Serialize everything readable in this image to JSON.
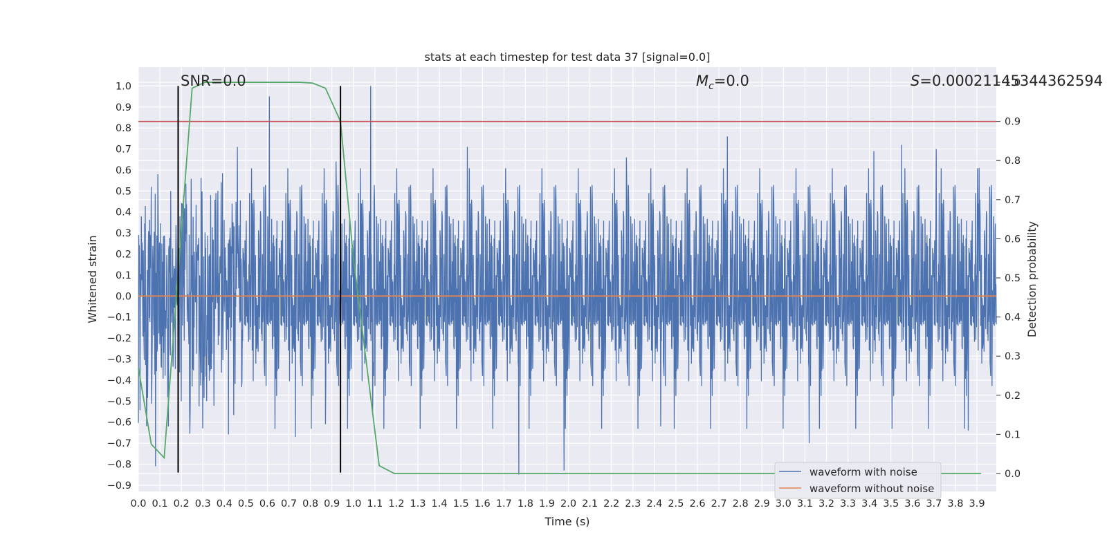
{
  "chart_data": {
    "type": "line",
    "title": "stats at each timestep for test data 37 [signal=0.0]",
    "xlabel": "Time (s)",
    "ylabel": "Whitened strain",
    "y2label": "Detection probability",
    "xlim": [
      0.0,
      3.99
    ],
    "ylim": [
      -0.93,
      1.09
    ],
    "y2lim": [
      -0.046,
      1.039
    ],
    "x_ticks": [
      "0.0",
      "0.1",
      "0.2",
      "0.3",
      "0.4",
      "0.5",
      "0.6",
      "0.7",
      "0.8",
      "0.9",
      "1.0",
      "1.1",
      "1.2",
      "1.3",
      "1.4",
      "1.5",
      "1.6",
      "1.7",
      "1.8",
      "1.9",
      "2.0",
      "2.1",
      "2.2",
      "2.3",
      "2.4",
      "2.5",
      "2.6",
      "2.7",
      "2.8",
      "2.9",
      "3.0",
      "3.1",
      "3.2",
      "3.3",
      "3.4",
      "3.5",
      "3.6",
      "3.7",
      "3.8",
      "3.9"
    ],
    "y_ticks": [
      "1.0",
      "0.9",
      "0.8",
      "0.7",
      "0.6",
      "0.5",
      "0.4",
      "0.3",
      "0.2",
      "0.1",
      "0.0",
      "−0.1",
      "−0.2",
      "−0.3",
      "−0.4",
      "−0.5",
      "−0.6",
      "−0.7",
      "−0.8",
      "−0.9"
    ],
    "y2_ticks": [
      "1.0",
      "0.9",
      "0.8",
      "0.7",
      "0.6",
      "0.5",
      "0.4",
      "0.3",
      "0.2",
      "0.1",
      "0.0"
    ],
    "grid": true,
    "legend_position": "lower-right",
    "annotations": {
      "snr": "SNR=0.0",
      "mc_symbol": "M",
      "mc_sub": "c",
      "mc_value": "=0.0",
      "s_symbol": "S",
      "s_value": "=0.00021145344362594"
    },
    "series": [
      {
        "name": "waveform with noise",
        "color": "#4c72b0",
        "description_kind": "noise",
        "envelope_hi": 0.35,
        "envelope_lo": -0.35,
        "spikes": [
          {
            "x": 0.06,
            "y": 0.52
          },
          {
            "x": 0.08,
            "y": -0.81
          },
          {
            "x": 0.09,
            "y": 0.58
          },
          {
            "x": 0.14,
            "y": -0.62
          },
          {
            "x": 0.15,
            "y": 0.5
          },
          {
            "x": 0.21,
            "y": 0.48
          },
          {
            "x": 0.3,
            "y": -0.63
          },
          {
            "x": 0.36,
            "y": 0.49
          },
          {
            "x": 0.46,
            "y": 0.71
          },
          {
            "x": 0.61,
            "y": 0.95
          },
          {
            "x": 0.73,
            "y": -0.67
          },
          {
            "x": 0.87,
            "y": -0.61
          },
          {
            "x": 0.92,
            "y": 0.64
          },
          {
            "x": 1.08,
            "y": 1.0
          },
          {
            "x": 1.09,
            "y": -0.55
          },
          {
            "x": 1.53,
            "y": 0.71
          },
          {
            "x": 1.77,
            "y": -0.85
          },
          {
            "x": 1.98,
            "y": -0.83
          },
          {
            "x": 2.27,
            "y": 0.66
          },
          {
            "x": 2.43,
            "y": -0.62
          },
          {
            "x": 2.74,
            "y": 0.76
          },
          {
            "x": 3.12,
            "y": -0.7
          },
          {
            "x": 3.42,
            "y": 0.69
          },
          {
            "x": 3.55,
            "y": 0.72
          },
          {
            "x": 3.71,
            "y": 0.7
          },
          {
            "x": 3.91,
            "y": 0.61
          },
          {
            "x": 3.86,
            "y": -0.64
          }
        ]
      },
      {
        "name": "waveform without noise",
        "color": "#dd8452",
        "x": [
          0.0,
          3.99
        ],
        "y": [
          0.0,
          0.0
        ]
      },
      {
        "name": "",
        "axis": "right",
        "color": "#55a868",
        "x": [
          0.0,
          0.06,
          0.12,
          0.25,
          0.31,
          0.37,
          0.5,
          0.62,
          0.75,
          0.81,
          0.87,
          0.94,
          1.0,
          1.12,
          1.19,
          1.31,
          2.0,
          3.0,
          3.92
        ],
        "y": [
          0.27,
          0.075,
          0.04,
          0.985,
          1.0,
          1.0,
          1.0,
          1.0,
          1.0,
          0.998,
          0.985,
          0.9,
          0.55,
          0.02,
          0.0,
          0.0,
          0.0,
          0.0,
          0.0
        ]
      }
    ],
    "threshold": {
      "axis": "right",
      "value": 0.9,
      "color": "#c44e52"
    },
    "markers": [
      {
        "x": 0.185,
        "y_range": [
          -0.84,
          1.0
        ],
        "color": "#000000"
      },
      {
        "x": 0.94,
        "y_range": [
          -0.84,
          1.0
        ],
        "color": "#000000"
      }
    ]
  }
}
